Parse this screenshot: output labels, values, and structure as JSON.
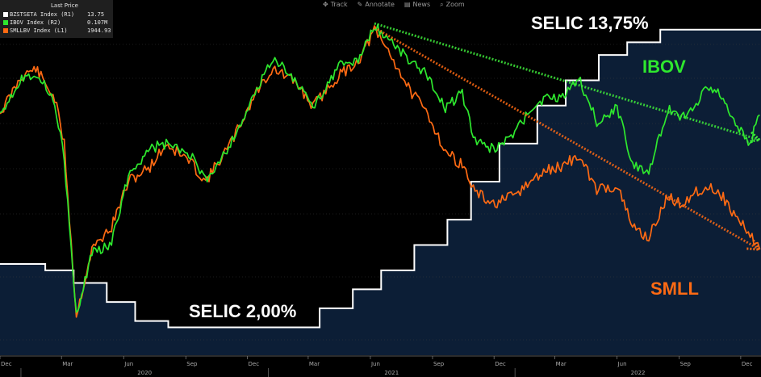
{
  "toolbar": {
    "items": [
      "Track",
      "Annotate",
      "News",
      "Zoom"
    ]
  },
  "legend": {
    "header": "Last Price",
    "rows": [
      {
        "label": "BZSTSETA Index (R1)",
        "value": "13.75",
        "color": "#ffffff"
      },
      {
        "label": "IBOV Index  (R2)",
        "value": "0.107M",
        "color": "#2ee82e"
      },
      {
        "label": "SMLLBV Index  (L1)",
        "value": "1944.93",
        "color": "#ff6a13"
      }
    ]
  },
  "annotations": {
    "selic_high": "SELIC 13,75%",
    "selic_low": "SELIC 2,00%",
    "ibov": "IBOV",
    "smll": "SMLL"
  },
  "colors": {
    "background": "#000000",
    "selic_fill": "#0c1e36",
    "selic": "#ffffff",
    "ibov": "#2ee82e",
    "smll": "#ff6a13"
  },
  "chart_data": {
    "type": "line",
    "x_unit": "date",
    "xlim": [
      "2019-12-01",
      "2022-12-31"
    ],
    "month_ticks": [
      "Dec",
      "Mar",
      "Jun",
      "Sep",
      "Dec",
      "Mar",
      "Jun",
      "Sep",
      "Dec",
      "Mar",
      "Jun",
      "Sep",
      "Dec"
    ],
    "year_labels": [
      "2020",
      "2021",
      "2022"
    ],
    "series": [
      {
        "name": "SELIC",
        "axis": "R1",
        "step": true,
        "x": [
          "2019-12-01",
          "2020-02-06",
          "2020-03-19",
          "2020-05-07",
          "2020-06-18",
          "2020-08-06",
          "2021-03-18",
          "2021-05-06",
          "2021-06-17",
          "2021-08-05",
          "2021-09-23",
          "2021-10-28",
          "2021-12-09",
          "2022-02-03",
          "2022-03-17",
          "2022-05-05",
          "2022-06-16",
          "2022-08-04",
          "2022-12-31"
        ],
        "values": [
          4.5,
          4.25,
          3.75,
          3.0,
          2.25,
          2.0,
          2.75,
          3.5,
          4.25,
          5.25,
          6.25,
          7.75,
          9.25,
          10.75,
          11.75,
          12.75,
          13.25,
          13.75,
          13.75
        ]
      },
      {
        "name": "IBOV",
        "axis": "R2",
        "x": [
          "2019-12-01",
          "2020-01-02",
          "2020-01-23",
          "2020-02-20",
          "2020-03-05",
          "2020-03-23",
          "2020-04-15",
          "2020-05-14",
          "2020-06-08",
          "2020-07-10",
          "2020-08-03",
          "2020-09-08",
          "2020-09-30",
          "2020-11-06",
          "2020-12-15",
          "2021-01-08",
          "2021-02-12",
          "2021-03-08",
          "2021-04-15",
          "2021-05-14",
          "2021-06-07",
          "2021-06-30",
          "2021-07-30",
          "2021-08-25",
          "2021-09-20",
          "2021-10-15",
          "2021-11-03",
          "2021-11-30",
          "2021-12-29",
          "2022-01-25",
          "2022-02-15",
          "2022-03-10",
          "2022-04-05",
          "2022-05-02",
          "2022-06-01",
          "2022-06-24",
          "2022-07-18",
          "2022-08-15",
          "2022-09-02",
          "2022-09-26",
          "2022-10-10",
          "2022-10-31",
          "2022-11-18",
          "2022-12-15",
          "2022-12-29"
        ],
        "values": [
          110.2,
          118.1,
          119.3,
          112.8,
          99.6,
          63.6,
          78.5,
          80.3,
          96.0,
          102.1,
          103.0,
          100.5,
          94.6,
          103.0,
          115.0,
          123.0,
          117.0,
          111.3,
          120.7,
          122.0,
          129.9,
          126.8,
          121.8,
          118.7,
          111.4,
          114.6,
          103.5,
          101.9,
          104.8,
          111.2,
          113.2,
          113.5,
          118.2,
          108.2,
          111.3,
          98.7,
          96.3,
          111.2,
          109.0,
          111.7,
          116.1,
          114.8,
          108.8,
          103.3,
          109.7
        ]
      },
      {
        "name": "SMLL",
        "axis": "L1",
        "x": [
          "2019-12-01",
          "2020-01-02",
          "2020-01-23",
          "2020-02-20",
          "2020-03-05",
          "2020-03-23",
          "2020-04-15",
          "2020-05-14",
          "2020-06-08",
          "2020-07-10",
          "2020-08-03",
          "2020-09-08",
          "2020-09-30",
          "2020-11-06",
          "2020-12-15",
          "2021-01-08",
          "2021-02-12",
          "2021-03-08",
          "2021-04-15",
          "2021-05-14",
          "2021-06-07",
          "2021-06-30",
          "2021-07-30",
          "2021-08-25",
          "2021-09-20",
          "2021-10-15",
          "2021-11-03",
          "2021-11-30",
          "2021-12-29",
          "2022-01-25",
          "2022-02-15",
          "2022-03-10",
          "2022-04-05",
          "2022-05-02",
          "2022-06-01",
          "2022-06-24",
          "2022-07-18",
          "2022-08-15",
          "2022-09-02",
          "2022-09-26",
          "2022-10-10",
          "2022-10-31",
          "2022-11-18",
          "2022-12-15",
          "2022-12-29"
        ],
        "values": [
          2900,
          3150,
          3200,
          3000,
          2700,
          1560,
          2000,
          2150,
          2450,
          2550,
          2700,
          2580,
          2450,
          2700,
          3050,
          3200,
          3100,
          2950,
          3150,
          3250,
          3450,
          3300,
          3050,
          2900,
          2650,
          2560,
          2380,
          2300,
          2350,
          2450,
          2520,
          2550,
          2620,
          2400,
          2420,
          2150,
          2080,
          2350,
          2300,
          2380,
          2420,
          2380,
          2250,
          2100,
          2005
        ]
      }
    ],
    "trend_lines": [
      {
        "series": "IBOV",
        "from": [
          "2021-06-07",
          130.5
        ],
        "to": [
          "2022-12-29",
          104.0
        ]
      },
      {
        "series": "SMLL",
        "from": [
          "2021-06-07",
          3470
        ],
        "to": [
          "2022-12-29",
          2000
        ]
      }
    ]
  }
}
